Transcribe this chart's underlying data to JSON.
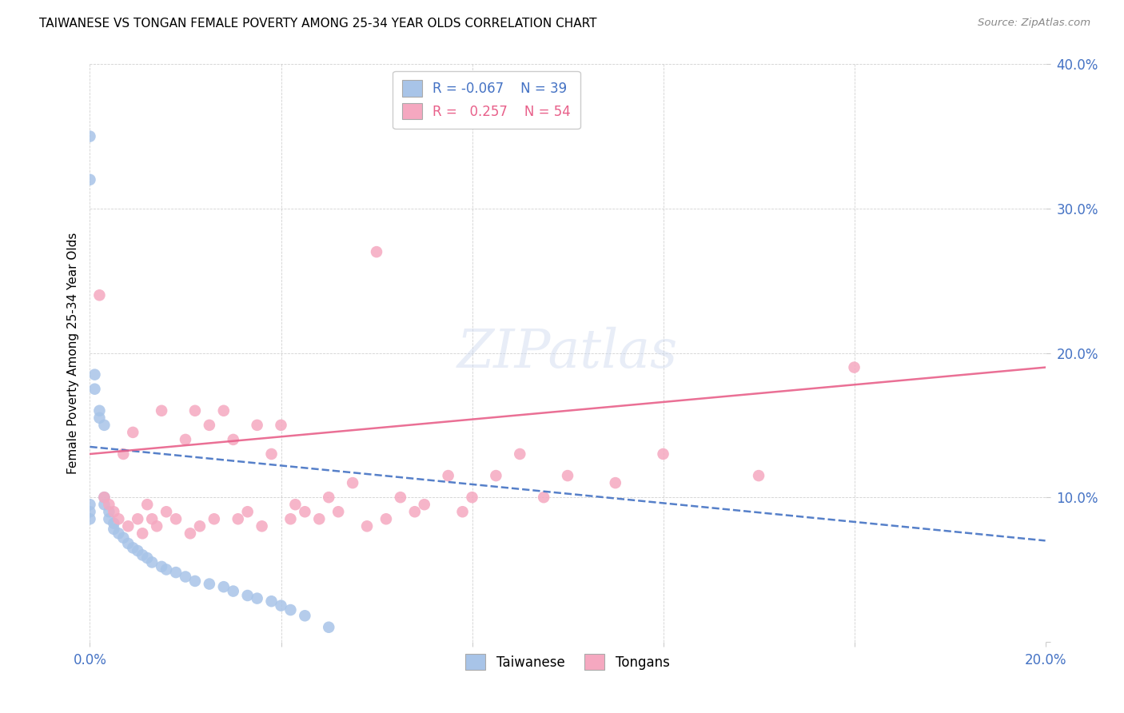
{
  "title": "TAIWANESE VS TONGAN FEMALE POVERTY AMONG 25-34 YEAR OLDS CORRELATION CHART",
  "source": "Source: ZipAtlas.com",
  "ylabel": "Female Poverty Among 25-34 Year Olds",
  "xlim": [
    0.0,
    0.2
  ],
  "ylim": [
    0.0,
    0.4
  ],
  "x_ticks": [
    0.0,
    0.04,
    0.08,
    0.12,
    0.16,
    0.2
  ],
  "y_ticks": [
    0.0,
    0.1,
    0.2,
    0.3,
    0.4
  ],
  "legend_r_taiwanese": "-0.067",
  "legend_n_taiwanese": "39",
  "legend_r_tongan": "0.257",
  "legend_n_tongan": "54",
  "taiwanese_color": "#a8c4e8",
  "tongan_color": "#f5a8c0",
  "taiwanese_line_color": "#4472c4",
  "tongan_line_color": "#e8608a",
  "tw_x": [
    0.0,
    0.0,
    0.0,
    0.0,
    0.0,
    0.001,
    0.001,
    0.002,
    0.002,
    0.003,
    0.003,
    0.003,
    0.004,
    0.004,
    0.005,
    0.005,
    0.006,
    0.007,
    0.008,
    0.009,
    0.01,
    0.011,
    0.012,
    0.013,
    0.015,
    0.016,
    0.018,
    0.02,
    0.022,
    0.025,
    0.028,
    0.03,
    0.033,
    0.035,
    0.038,
    0.04,
    0.042,
    0.045,
    0.05
  ],
  "tw_y": [
    0.35,
    0.32,
    0.095,
    0.09,
    0.085,
    0.185,
    0.175,
    0.16,
    0.155,
    0.15,
    0.1,
    0.095,
    0.09,
    0.085,
    0.082,
    0.078,
    0.075,
    0.072,
    0.068,
    0.065,
    0.063,
    0.06,
    0.058,
    0.055,
    0.052,
    0.05,
    0.048,
    0.045,
    0.042,
    0.04,
    0.038,
    0.035,
    0.032,
    0.03,
    0.028,
    0.025,
    0.022,
    0.018,
    0.01
  ],
  "tong_x": [
    0.002,
    0.003,
    0.004,
    0.005,
    0.006,
    0.007,
    0.008,
    0.009,
    0.01,
    0.011,
    0.012,
    0.013,
    0.014,
    0.015,
    0.016,
    0.018,
    0.02,
    0.021,
    0.022,
    0.023,
    0.025,
    0.026,
    0.028,
    0.03,
    0.031,
    0.033,
    0.035,
    0.036,
    0.038,
    0.04,
    0.042,
    0.043,
    0.045,
    0.048,
    0.05,
    0.052,
    0.055,
    0.058,
    0.06,
    0.062,
    0.065,
    0.068,
    0.07,
    0.075,
    0.078,
    0.08,
    0.085,
    0.09,
    0.095,
    0.1,
    0.11,
    0.12,
    0.14,
    0.16
  ],
  "tong_y": [
    0.24,
    0.1,
    0.095,
    0.09,
    0.085,
    0.13,
    0.08,
    0.145,
    0.085,
    0.075,
    0.095,
    0.085,
    0.08,
    0.16,
    0.09,
    0.085,
    0.14,
    0.075,
    0.16,
    0.08,
    0.15,
    0.085,
    0.16,
    0.14,
    0.085,
    0.09,
    0.15,
    0.08,
    0.13,
    0.15,
    0.085,
    0.095,
    0.09,
    0.085,
    0.1,
    0.09,
    0.11,
    0.08,
    0.27,
    0.085,
    0.1,
    0.09,
    0.095,
    0.115,
    0.09,
    0.1,
    0.115,
    0.13,
    0.1,
    0.115,
    0.11,
    0.13,
    0.115,
    0.19
  ],
  "tw_line_x": [
    0.0,
    0.2
  ],
  "tw_line_y": [
    0.135,
    0.07
  ],
  "tong_line_x": [
    0.0,
    0.2
  ],
  "tong_line_y": [
    0.13,
    0.19
  ]
}
